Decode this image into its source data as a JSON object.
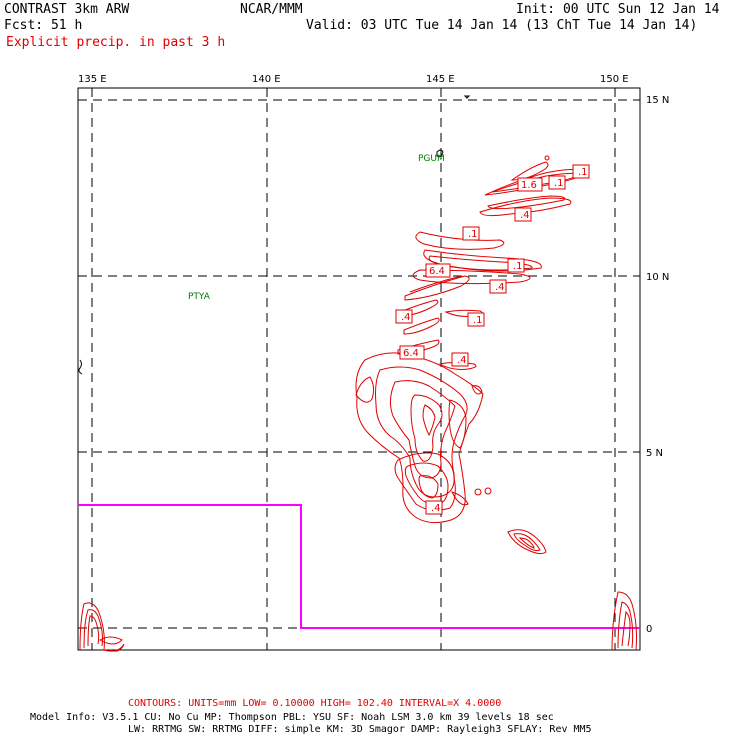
{
  "header": {
    "model": "CONTRAST  3km ARW",
    "org": "NCAR/MMM",
    "init": "Init: 00 UTC Sun 12 Jan 14",
    "fcst": "Fcst:   51 h",
    "valid": "Valid: 03 UTC Tue 14 Jan 14 (13 ChT Tue 14 Jan 14)",
    "field": "Explicit precip. in past 3 h"
  },
  "axes": {
    "lon_labels": [
      "135 E",
      "140 E",
      "145 E",
      "150 E"
    ],
    "lat_labels": [
      "15 N",
      "10 N",
      "5 N",
      "0"
    ]
  },
  "stations": [
    "PGUM",
    "PTYA"
  ],
  "contour_labels": [
    ".1",
    ".1",
    "1.6",
    ".4",
    ".1",
    ".1",
    "6.4",
    ".4",
    ".4",
    ".1",
    "6.4",
    ".4",
    ".4"
  ],
  "colors": {
    "precip": "#e00000",
    "domain_box": "#ff00ff",
    "station": "#008000",
    "grid": "#000000"
  },
  "footer": {
    "contours": "CONTOURS:  UNITS=mm  LOW= 0.10000      HIGH=  102.40      INTERVAL=X  4.0000",
    "model_info_1": "Model Info: V3.5.1    CU: No Cu     MP: Thompson     PBL: YSU        SF: Noah LSM     3.0 km   39 levels   18 sec",
    "model_info_2": "LW: RRTMG     SW: RRTMG   DIFF: simple KM: 3D Smagor DAMP: Rayleigh3  SFLAY: Rev MM5"
  }
}
